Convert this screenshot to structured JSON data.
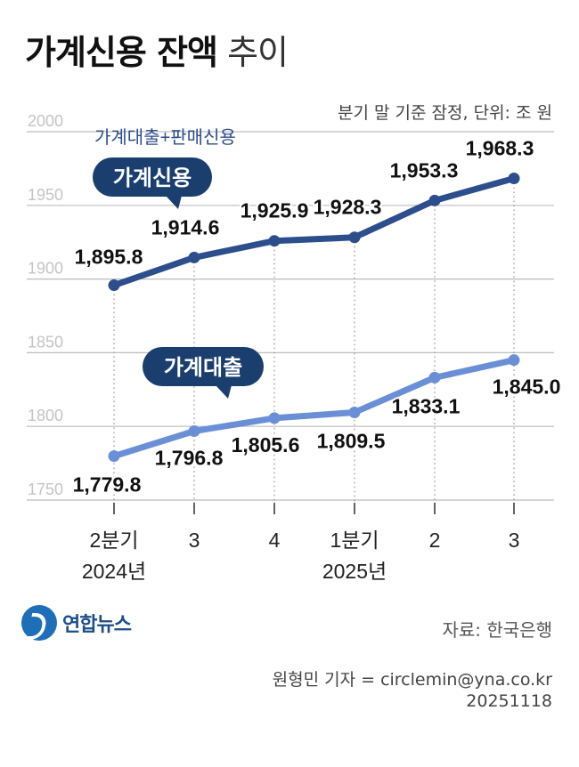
{
  "header": {
    "title_bold": "가계신용 잔액",
    "title_light": "추이",
    "note": "분기 말 기준 잠정, 단위: 조 원"
  },
  "chart_data": {
    "type": "line",
    "categories": [
      "2분기",
      "3",
      "4",
      "1분기",
      "2",
      "3"
    ],
    "category_years": [
      "2024년",
      "",
      "",
      "2025년",
      "",
      ""
    ],
    "y_ticks": [
      2000,
      1950,
      1900,
      1850,
      1800,
      1750
    ],
    "ylim": [
      1750,
      2000
    ],
    "grid": true,
    "series": [
      {
        "name": "가계신용",
        "subtitle": "가계대출+판매신용",
        "values": [
          1895.8,
          1914.6,
          1925.9,
          1928.3,
          1953.3,
          1968.3
        ],
        "labels": [
          "1,895.8",
          "1,914.6",
          "1,925.9",
          "1,928.3",
          "1,953.3",
          "1,968.3"
        ],
        "color": "#2d4e8c"
      },
      {
        "name": "가계대출",
        "values": [
          1779.8,
          1796.8,
          1805.6,
          1809.5,
          1833.1,
          1845.0
        ],
        "labels": [
          "1,779.8",
          "1,796.8",
          "1,805.6",
          "1,809.5",
          "1,833.1",
          "1,845.0"
        ],
        "color": "#6b8fd6"
      }
    ],
    "bubble_color": "#1a3f6e"
  },
  "footer": {
    "logo": "연합뉴스",
    "source": "자료: 한국은행",
    "credit": "원형민 기자 = circlemin@yna.co.kr",
    "date": "20251118"
  }
}
